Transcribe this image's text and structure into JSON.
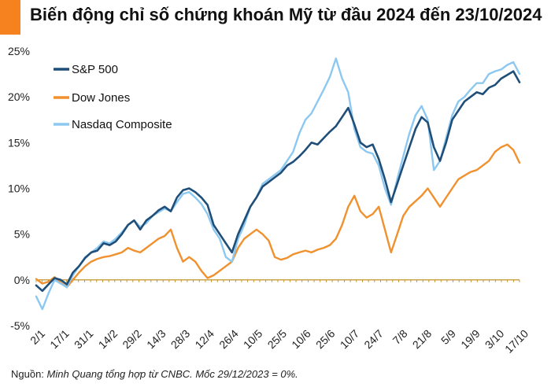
{
  "title": "Biến động chỉ số chứng khoán Mỹ từ đầu 2024 đến 23/10/2024",
  "source_prefix": "Nguồn: ",
  "source_text": "Minh Quang tổng hợp từ CNBC. Mốc 29/12/2023 = 0%.",
  "colors": {
    "accent": "#F5821F",
    "sp500": "#1F4E79",
    "dow": "#F0912E",
    "nasdaq": "#8CC8F0",
    "zero_line": "#B8860B"
  },
  "chart_data": {
    "type": "line",
    "title": "Biến động chỉ số chứng khoán Mỹ từ đầu 2024 đến 23/10/2024",
    "xlabel": "",
    "ylabel": "",
    "y_unit": "%",
    "ylim": [
      -5,
      25
    ],
    "yticks": [
      "25%",
      "20%",
      "15%",
      "10%",
      "5%",
      "0%",
      "-5%"
    ],
    "grid": false,
    "legend_position": "top-left",
    "x_tick_labels": [
      "2/1",
      "17/1",
      "31/1",
      "14/2",
      "29/2",
      "14/3",
      "28/3",
      "12/4",
      "26/4",
      "10/5",
      "25/5",
      "10/6",
      "25/6",
      "10/7",
      "24/7",
      "7/8",
      "21/8",
      "5/9",
      "19/9",
      "3/10",
      "17/10"
    ],
    "series": [
      {
        "name": "S&P 500",
        "key": "sp500",
        "values": [
          -0.6,
          -1.2,
          -0.5,
          0.2,
          0.0,
          -0.5,
          0.8,
          1.5,
          2.4,
          3.0,
          3.2,
          4.0,
          3.8,
          4.2,
          5.0,
          6.0,
          6.5,
          5.5,
          6.5,
          7.0,
          7.6,
          8.0,
          7.5,
          9.0,
          9.8,
          10.0,
          9.6,
          9.0,
          8.2,
          6.0,
          5.0,
          4.0,
          3.0,
          5.0,
          6.5,
          8.0,
          9.0,
          10.2,
          10.7,
          11.2,
          11.7,
          12.5,
          12.9,
          13.5,
          14.2,
          15.0,
          14.8,
          15.5,
          16.2,
          16.8,
          17.8,
          18.8,
          17.0,
          15.0,
          14.5,
          14.8,
          13.2,
          11.0,
          8.5,
          10.5,
          12.5,
          14.5,
          16.5,
          17.8,
          17.2,
          14.5,
          13.0,
          15.0,
          17.5,
          18.5,
          19.5,
          20.0,
          20.5,
          20.3,
          21.0,
          21.3,
          22.0,
          22.4,
          22.8,
          21.6
        ]
      },
      {
        "name": "Dow Jones",
        "key": "dow",
        "values": [
          0.1,
          -0.4,
          -0.2,
          0.3,
          -0.3,
          -0.8,
          0.0,
          0.8,
          1.5,
          2.0,
          2.3,
          2.5,
          2.6,
          2.8,
          3.0,
          3.5,
          3.2,
          3.0,
          3.5,
          4.0,
          4.5,
          4.8,
          5.5,
          3.5,
          2.0,
          2.5,
          2.0,
          1.0,
          0.2,
          0.5,
          1.0,
          1.5,
          2.0,
          3.5,
          4.5,
          5.0,
          5.5,
          5.0,
          4.3,
          2.5,
          2.2,
          2.4,
          2.8,
          3.0,
          3.2,
          3.0,
          3.3,
          3.5,
          3.8,
          4.5,
          6.0,
          8.0,
          9.2,
          7.5,
          6.8,
          7.2,
          8.0,
          5.5,
          3.0,
          5.0,
          7.0,
          8.0,
          8.6,
          9.2,
          10.0,
          9.0,
          8.0,
          9.0,
          10.0,
          11.0,
          11.4,
          11.8,
          12.0,
          12.5,
          13.0,
          14.0,
          14.5,
          14.8,
          14.2,
          12.8
        ]
      },
      {
        "name": "Nasdaq Composite",
        "key": "nasdaq",
        "values": [
          -1.8,
          -3.2,
          -1.5,
          0.0,
          -0.4,
          -0.8,
          0.5,
          1.5,
          2.5,
          3.0,
          3.5,
          4.2,
          4.0,
          4.5,
          5.2,
          6.0,
          6.5,
          5.8,
          6.2,
          7.0,
          7.4,
          7.8,
          7.5,
          8.5,
          9.4,
          9.6,
          9.0,
          8.3,
          7.2,
          5.5,
          4.5,
          2.5,
          2.0,
          4.5,
          6.0,
          8.0,
          9.0,
          10.5,
          11.0,
          11.5,
          12.0,
          13.0,
          14.0,
          16.0,
          17.5,
          18.2,
          19.5,
          20.8,
          22.2,
          24.2,
          22.0,
          20.5,
          16.5,
          14.5,
          14.0,
          13.8,
          12.5,
          10.0,
          8.2,
          11.0,
          13.5,
          16.0,
          18.0,
          19.0,
          17.5,
          12.0,
          13.0,
          15.5,
          18.0,
          19.5,
          20.0,
          20.8,
          21.5,
          21.5,
          22.5,
          22.8,
          23.0,
          23.5,
          23.8,
          22.5
        ]
      }
    ]
  }
}
